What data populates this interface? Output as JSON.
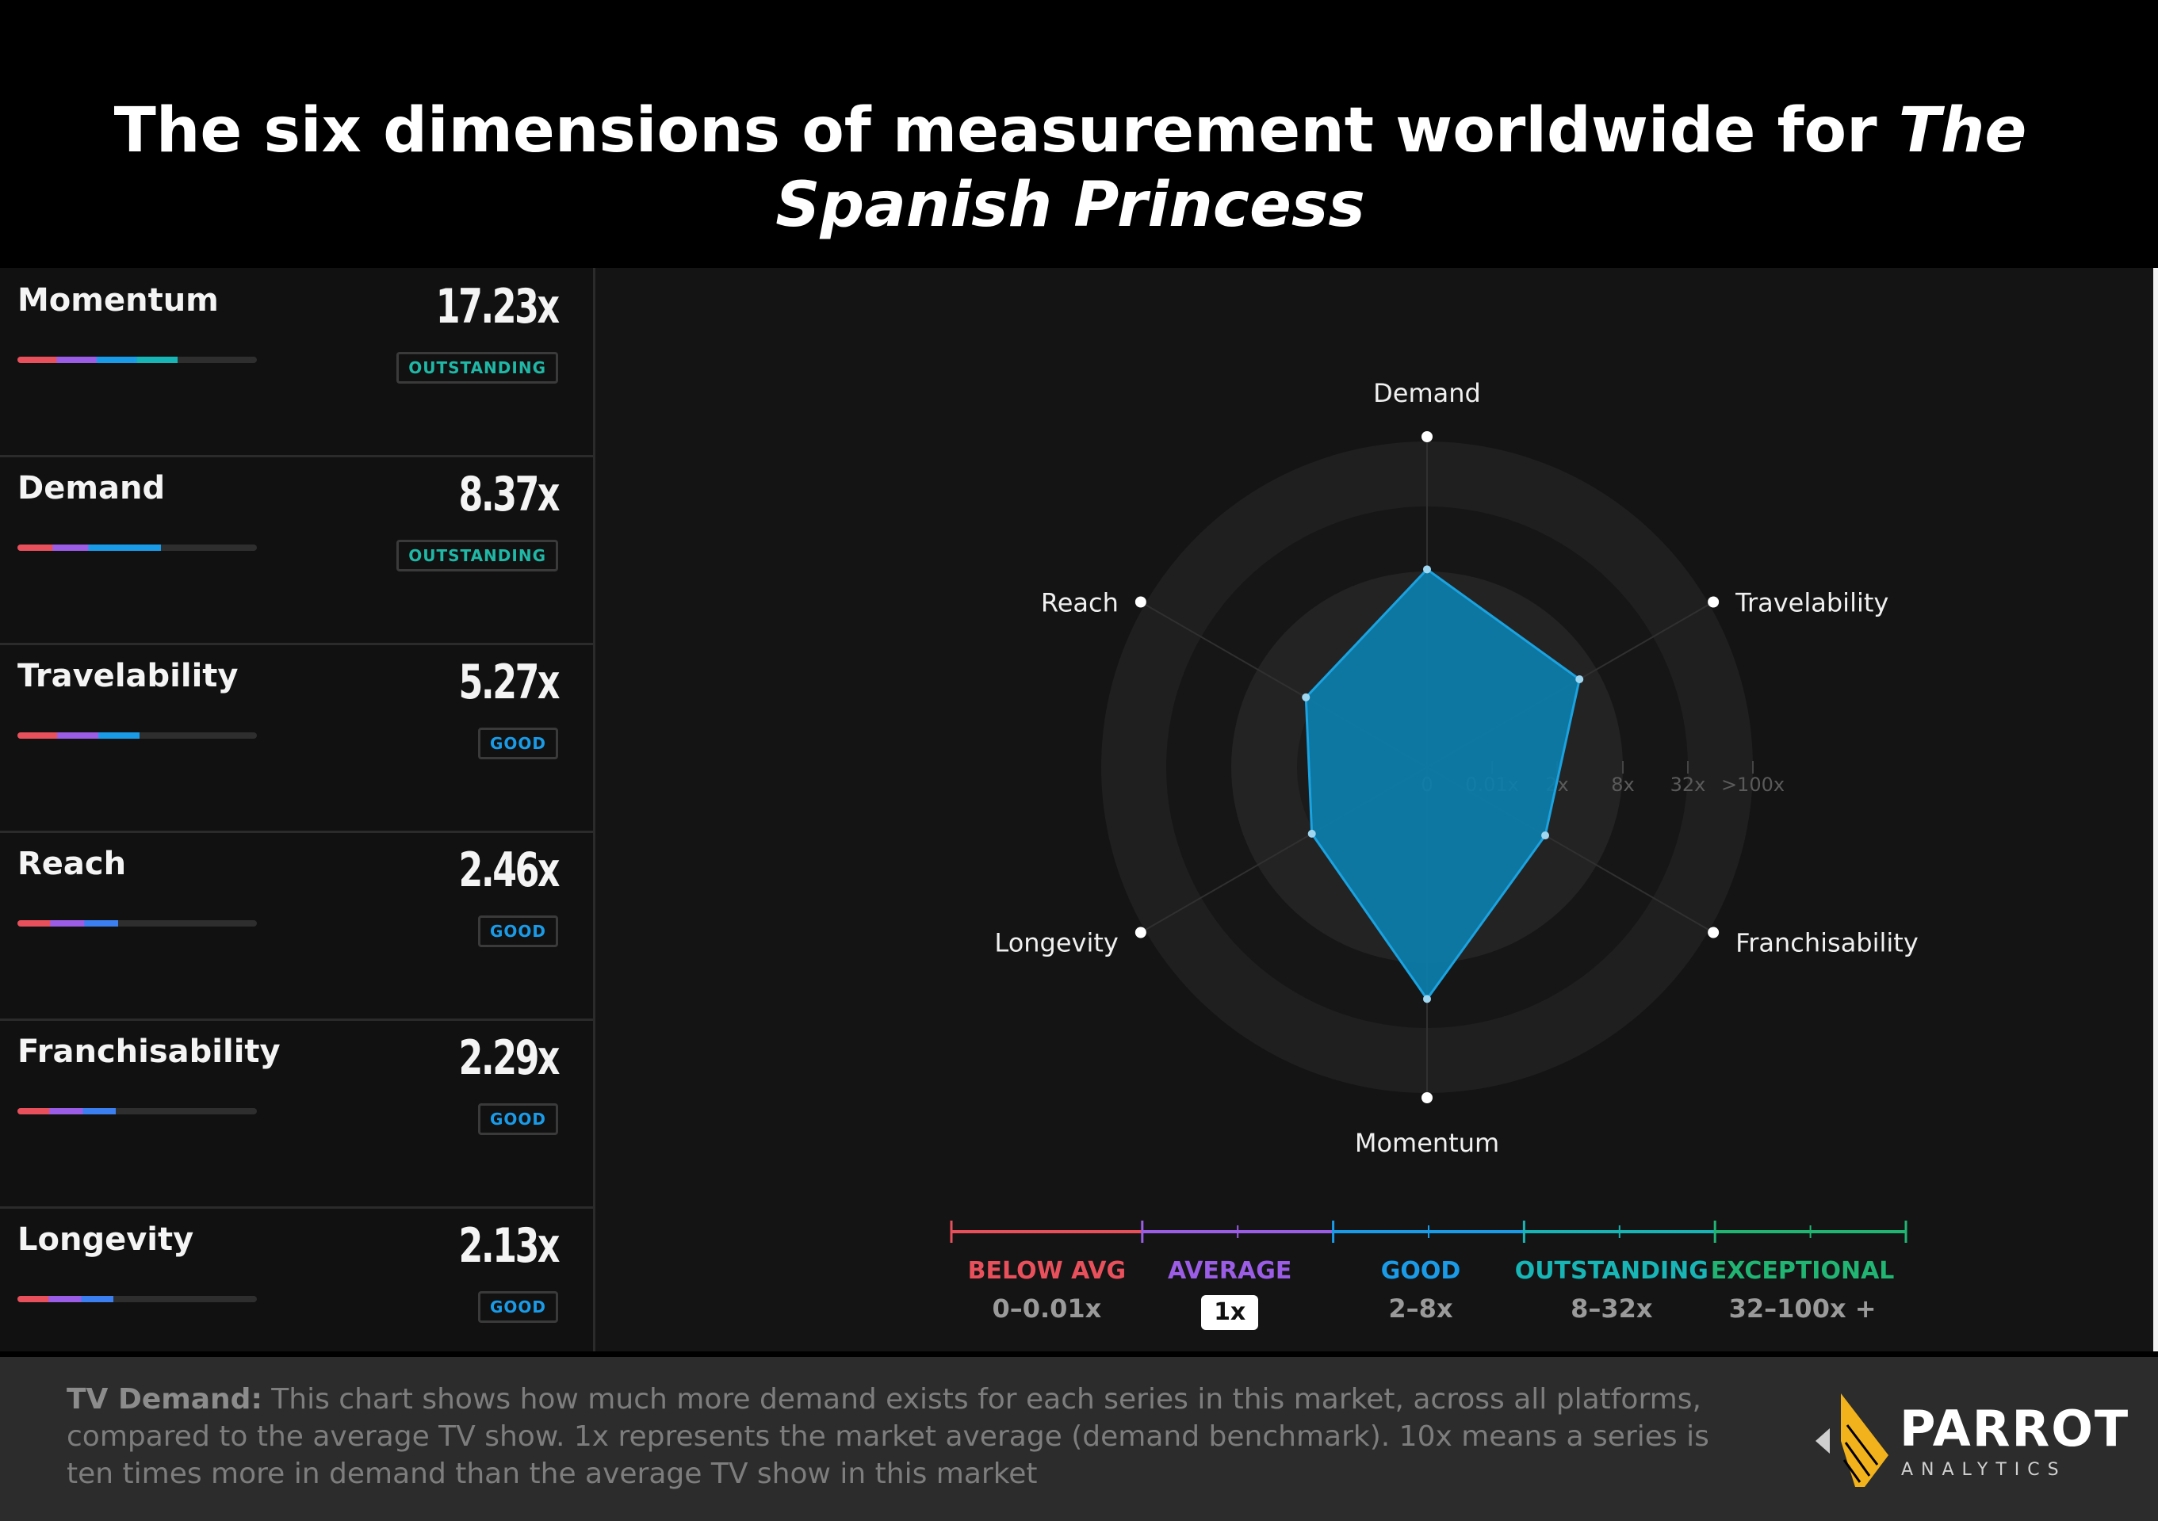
{
  "title": {
    "main": "The six dimensions of measurement worldwide for ",
    "italic": "The Spanish Princess"
  },
  "metrics": [
    {
      "name": "Momentum",
      "value": "17.23x",
      "badge": "OUTSTANDING",
      "badge_color": "#1fb7a6",
      "progress": 0.67,
      "gradient": [
        "#e8505b",
        "#9b5de5",
        "#1a9be8",
        "#17b5b5"
      ]
    },
    {
      "name": "Demand",
      "value": "8.37x",
      "badge": "OUTSTANDING",
      "badge_color": "#1fb7a6",
      "progress": 0.6,
      "gradient": [
        "#e8505b",
        "#9b5de5",
        "#1a9be8",
        "#1a9be8"
      ]
    },
    {
      "name": "Travelability",
      "value": "5.27x",
      "badge": "GOOD",
      "badge_color": "#1a9be8",
      "progress": 0.51,
      "gradient": [
        "#e8505b",
        "#9b5de5",
        "#1a9be8"
      ]
    },
    {
      "name": "Reach",
      "value": "2.46x",
      "badge": "GOOD",
      "badge_color": "#1a9be8",
      "progress": 0.42,
      "gradient": [
        "#e8505b",
        "#9b5de5",
        "#3c7ff0"
      ]
    },
    {
      "name": "Franchisability",
      "value": "2.29x",
      "badge": "GOOD",
      "badge_color": "#1a9be8",
      "progress": 0.41,
      "gradient": [
        "#e8505b",
        "#9b5de5",
        "#3c7ff0"
      ]
    },
    {
      "name": "Longevity",
      "value": "2.13x",
      "badge": "GOOD",
      "badge_color": "#1a9be8",
      "progress": 0.4,
      "gradient": [
        "#e8505b",
        "#9b5de5",
        "#3c7ff0"
      ]
    }
  ],
  "chart_data": {
    "type": "radar",
    "axes": [
      "Demand",
      "Travelability",
      "Franchisability",
      "Momentum",
      "Longevity",
      "Reach"
    ],
    "series": [
      {
        "values": [
          8.37,
          5.27,
          2.29,
          17.23,
          2.13,
          2.46
        ]
      }
    ],
    "scale": "log",
    "ring_ticks": [
      "0",
      "0.01x",
      "2x",
      "8x",
      "32x",
      ">100x"
    ],
    "ring_tick_values": [
      0,
      0.01,
      2,
      8,
      32,
      100
    ],
    "fill_color": "#0c7fae",
    "stroke_color": "#1aa3e0"
  },
  "legend": [
    {
      "label": "BELOW AVG",
      "range": "0–0.01x",
      "color": "#e8505b"
    },
    {
      "label": "AVERAGE",
      "range": "1x",
      "color": "#9b5de5",
      "pill": true
    },
    {
      "label": "GOOD",
      "range": "2–8x",
      "color": "#1a9be8"
    },
    {
      "label": "OUTSTANDING",
      "range": "8–32x",
      "color": "#17b5b5"
    },
    {
      "label": "EXCEPTIONAL",
      "range": "32–100x +",
      "color": "#21b573"
    }
  ],
  "footer": {
    "bold": "TV Demand:",
    "text": " This chart shows how much more demand exists for each series in this market, across all platforms, compared to the average TV show. 1x represents the market average (demand benchmark). 10x means a series is ten times more in demand than the average TV show in this market"
  },
  "logo": {
    "word": "PARROT",
    "sub": "ANALYTICS"
  }
}
